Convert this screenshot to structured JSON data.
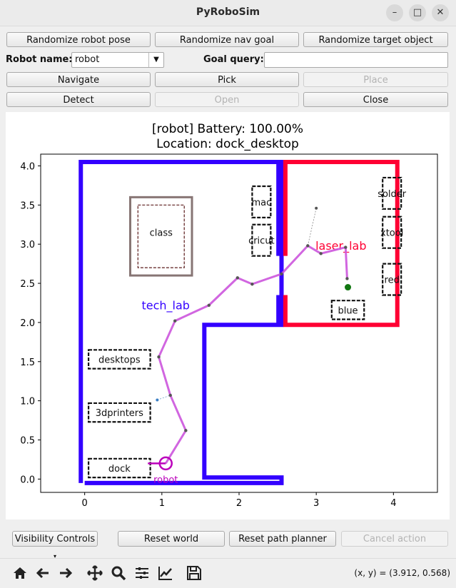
{
  "window": {
    "title": "PyRoboSim"
  },
  "buttons_row1": [
    "Randomize robot pose",
    "Randomize nav goal",
    "Randomize target object"
  ],
  "robot_name": {
    "label": "Robot name:",
    "value": "robot"
  },
  "goal_query": {
    "label": "Goal query:",
    "value": ""
  },
  "buttons_row3": [
    "Navigate",
    "Pick",
    "Place"
  ],
  "buttons_row4": [
    "Detect",
    "Open",
    "Close"
  ],
  "bottom_buttons": {
    "visibility": "Visibility Controls",
    "reset_world": "Reset world",
    "reset_planner": "Reset path planner",
    "cancel": "Cancel action"
  },
  "coord_readout": "(x, y) = (3.912, 0.568)",
  "chart_data": {
    "type": "map",
    "title_line1": "[robot] Battery: 100.00%",
    "title_line2": "Location: dock_desktop",
    "xlim": [
      -0.57,
      4.57
    ],
    "ylim": [
      -0.17,
      4.15
    ],
    "xticks": [
      0,
      1,
      2,
      3,
      4
    ],
    "yticks": [
      0.0,
      0.5,
      1.0,
      1.5,
      2.0,
      2.5,
      3.0,
      3.5,
      4.0
    ],
    "colors": {
      "tech_lab": "#3300ff",
      "laser_lab": "#ff0033",
      "path": "#cc55dd",
      "robot": "#bb00bb",
      "goal": "#117711",
      "class": "#877574"
    },
    "rooms": [
      {
        "name": "tech_lab",
        "label_x": 1.05,
        "label_y": 2.17,
        "polygon": [
          [
            0,
            -0.05
          ],
          [
            2.55,
            -0.05
          ],
          [
            2.55,
            0.02
          ],
          [
            1.55,
            0.02
          ],
          [
            1.55,
            1.97
          ],
          [
            2.55,
            1.97
          ],
          [
            2.55,
            4.05
          ],
          [
            -0.05,
            4.05
          ],
          [
            -0.05,
            -0.05
          ]
        ]
      },
      {
        "name": "laser_lab",
        "label_x": 3.32,
        "label_y": 2.93
      }
    ],
    "locations": [
      {
        "name": "class",
        "x": 0.99,
        "y": 3.15
      },
      {
        "name": "mac",
        "x": 2.29,
        "y": 3.54
      },
      {
        "name": "cricut",
        "x": 2.29,
        "y": 3.05
      },
      {
        "name": "solder",
        "x": 3.98,
        "y": 3.65
      },
      {
        "name": "xtool",
        "x": 3.98,
        "y": 3.15
      },
      {
        "name": "red",
        "x": 3.98,
        "y": 2.55
      },
      {
        "name": "blue",
        "x": 3.41,
        "y": 2.16
      },
      {
        "name": "desktops",
        "x": 0.45,
        "y": 1.53
      },
      {
        "name": "3dprinters",
        "x": 0.45,
        "y": 0.85
      },
      {
        "name": "dock",
        "x": 0.45,
        "y": 0.14
      }
    ],
    "path": [
      [
        1.05,
        0.2
      ],
      [
        1.31,
        0.62
      ],
      [
        1.11,
        1.07
      ],
      [
        0.96,
        1.56
      ],
      [
        1.17,
        2.02
      ],
      [
        1.61,
        2.22
      ],
      [
        1.98,
        2.57
      ],
      [
        2.17,
        2.49
      ],
      [
        2.55,
        2.62
      ],
      [
        2.89,
        2.98
      ],
      [
        3.06,
        2.88
      ],
      [
        3.38,
        2.96
      ],
      [
        3.4,
        2.56
      ]
    ],
    "robot": {
      "x": 1.05,
      "y": 0.2,
      "label": "robot"
    },
    "goal": {
      "x": 3.41,
      "y": 2.45
    },
    "aux_points": [
      [
        0.94,
        1.01
      ],
      [
        3.0,
        3.46
      ]
    ]
  }
}
